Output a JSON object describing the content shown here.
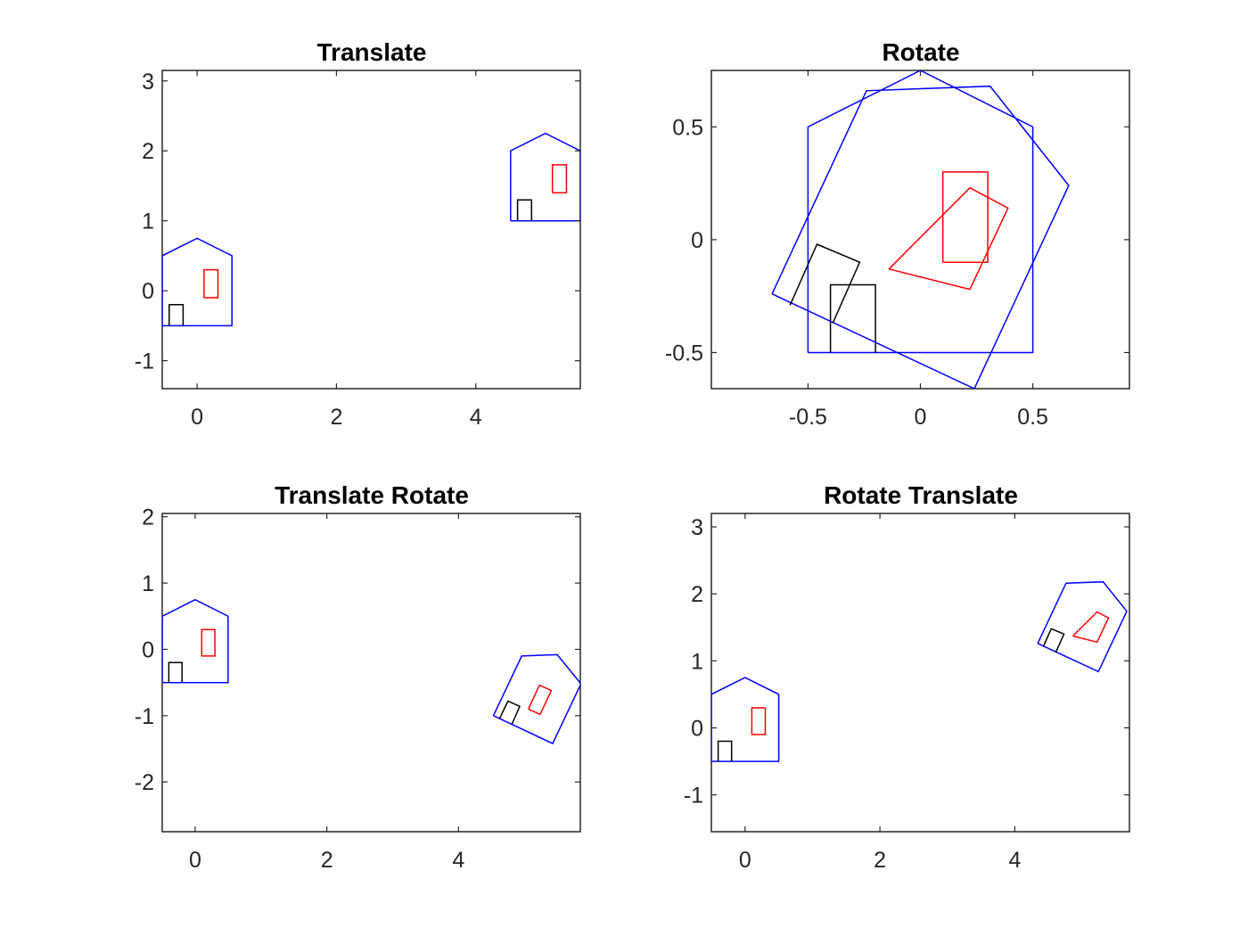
{
  "chart_data": [
    {
      "type": "line",
      "title": "Translate",
      "xlabel": "",
      "ylabel": "",
      "xlim": [
        -0.5,
        5.5
      ],
      "ylim": [
        -1.4,
        3.15
      ],
      "xticks": [
        0,
        2,
        4
      ],
      "xtick_labels": [
        "0",
        "2",
        "4"
      ],
      "yticks": [
        -1,
        0,
        1,
        2,
        3
      ],
      "ytick_labels": [
        "-1",
        "0",
        "1",
        "2",
        "3"
      ],
      "grid": false,
      "shapes": [
        {
          "color": "#0000ff",
          "points": [
            [
              -0.5,
              -0.5
            ],
            [
              0.5,
              -0.5
            ],
            [
              0.5,
              0.5
            ],
            [
              0,
              0.75
            ],
            [
              -0.5,
              0.5
            ],
            [
              -0.5,
              -0.5
            ]
          ]
        },
        {
          "color": "#ff0000",
          "points": [
            [
              0.1,
              -0.1
            ],
            [
              0.3,
              -0.1
            ],
            [
              0.3,
              0.3
            ],
            [
              0.1,
              0.3
            ],
            [
              0.1,
              -0.1
            ]
          ]
        },
        {
          "color": "#000000",
          "points": [
            [
              -0.4,
              -0.5
            ],
            [
              -0.4,
              -0.2
            ],
            [
              -0.2,
              -0.2
            ],
            [
              -0.2,
              -0.5
            ]
          ]
        },
        {
          "color": "#0000ff",
          "points": [
            [
              4.5,
              1.0
            ],
            [
              5.5,
              1.0
            ],
            [
              5.5,
              2.0
            ],
            [
              5.0,
              2.25
            ],
            [
              4.5,
              2.0
            ],
            [
              4.5,
              1.0
            ]
          ]
        },
        {
          "color": "#ff0000",
          "points": [
            [
              5.1,
              1.4
            ],
            [
              5.3,
              1.4
            ],
            [
              5.3,
              1.8
            ],
            [
              5.1,
              1.8
            ],
            [
              5.1,
              1.4
            ]
          ]
        },
        {
          "color": "#000000",
          "points": [
            [
              4.6,
              1.0
            ],
            [
              4.6,
              1.3
            ],
            [
              4.8,
              1.3
            ],
            [
              4.8,
              1.0
            ]
          ]
        }
      ]
    },
    {
      "type": "line",
      "title": "Rotate",
      "xlabel": "",
      "ylabel": "",
      "xlim": [
        -0.93,
        0.93
      ],
      "ylim": [
        -0.66,
        0.75
      ],
      "xticks": [
        -0.5,
        0,
        0.5
      ],
      "xtick_labels": [
        "-0.5",
        "0",
        "0.5"
      ],
      "yticks": [
        -0.5,
        0,
        0.5
      ],
      "ytick_labels": [
        "-0.5",
        "0",
        "0.5"
      ],
      "grid": false,
      "shapes": [
        {
          "color": "#0000ff",
          "points": [
            [
              -0.5,
              -0.5
            ],
            [
              0.5,
              -0.5
            ],
            [
              0.5,
              0.5
            ],
            [
              0,
              0.75
            ],
            [
              -0.5,
              0.5
            ],
            [
              -0.5,
              -0.5
            ]
          ]
        },
        {
          "color": "#ff0000",
          "points": [
            [
              0.1,
              -0.1
            ],
            [
              0.3,
              -0.1
            ],
            [
              0.3,
              0.3
            ],
            [
              0.1,
              0.3
            ],
            [
              0.1,
              -0.1
            ]
          ]
        },
        {
          "color": "#000000",
          "points": [
            [
              -0.4,
              -0.5
            ],
            [
              -0.4,
              -0.2
            ],
            [
              -0.2,
              -0.2
            ],
            [
              -0.2,
              -0.5
            ]
          ]
        },
        {
          "color": "#0000ff",
          "points": [
            [
              -0.66,
              -0.24
            ],
            [
              0.24,
              -0.66
            ],
            [
              0.66,
              0.24
            ],
            [
              0.31,
              0.68
            ],
            [
              -0.24,
              0.66
            ],
            [
              -0.66,
              -0.24
            ]
          ]
        },
        {
          "color": "#ff0000",
          "points": [
            [
              -0.14,
              -0.13
            ],
            [
              0.22,
              -0.22
            ],
            [
              0.39,
              0.14
            ],
            [
              0.22,
              0.23
            ],
            [
              -0.14,
              -0.13
            ]
          ]
        },
        {
          "color": "#000000",
          "points": [
            [
              -0.58,
              -0.29
            ],
            [
              -0.46,
              -0.02
            ],
            [
              -0.27,
              -0.1
            ],
            [
              -0.39,
              -0.37
            ]
          ]
        }
      ]
    },
    {
      "type": "line",
      "title": "Translate Rotate",
      "xlabel": "",
      "ylabel": "",
      "xlim": [
        -0.5,
        5.85
      ],
      "ylim": [
        -2.75,
        2.05
      ],
      "xticks": [
        0,
        2,
        4
      ],
      "xtick_labels": [
        "0",
        "2",
        "4"
      ],
      "yticks": [
        -2,
        -1,
        0,
        1,
        2
      ],
      "ytick_labels": [
        "-2",
        "-1",
        "0",
        "1",
        "2"
      ],
      "grid": false,
      "shapes": [
        {
          "color": "#0000ff",
          "points": [
            [
              -0.5,
              -0.5
            ],
            [
              0.5,
              -0.5
            ],
            [
              0.5,
              0.5
            ],
            [
              0,
              0.75
            ],
            [
              -0.5,
              0.5
            ],
            [
              -0.5,
              -0.5
            ]
          ]
        },
        {
          "color": "#ff0000",
          "points": [
            [
              0.1,
              -0.1
            ],
            [
              0.3,
              -0.1
            ],
            [
              0.3,
              0.3
            ],
            [
              0.1,
              0.3
            ],
            [
              0.1,
              -0.1
            ]
          ]
        },
        {
          "color": "#000000",
          "points": [
            [
              -0.4,
              -0.5
            ],
            [
              -0.4,
              -0.2
            ],
            [
              -0.2,
              -0.2
            ],
            [
              -0.2,
              -0.5
            ]
          ]
        },
        {
          "color": "#0000ff",
          "points": [
            [
              4.53,
              -1.0
            ],
            [
              5.43,
              -1.42
            ],
            [
              5.86,
              -0.52
            ],
            [
              5.5,
              -0.08
            ],
            [
              4.96,
              -0.1
            ],
            [
              4.53,
              -1.0
            ]
          ]
        },
        {
          "color": "#ff0000",
          "points": [
            [
              5.06,
              -0.9
            ],
            [
              5.24,
              -0.98
            ],
            [
              5.41,
              -0.62
            ],
            [
              5.23,
              -0.54
            ],
            [
              5.06,
              -0.9
            ]
          ]
        },
        {
          "color": "#000000",
          "points": [
            [
              4.62,
              -1.05
            ],
            [
              4.75,
              -0.78
            ],
            [
              4.93,
              -0.86
            ],
            [
              4.81,
              -1.13
            ]
          ]
        }
      ]
    },
    {
      "type": "line",
      "title": "Rotate Translate",
      "xlabel": "",
      "ylabel": "",
      "xlim": [
        -0.5,
        5.7
      ],
      "ylim": [
        -1.55,
        3.2
      ],
      "xticks": [
        0,
        2,
        4
      ],
      "xtick_labels": [
        "0",
        "2",
        "4"
      ],
      "yticks": [
        -1,
        0,
        1,
        2,
        3
      ],
      "ytick_labels": [
        "-1",
        "0",
        "1",
        "2",
        "3"
      ],
      "grid": false,
      "shapes": [
        {
          "color": "#0000ff",
          "points": [
            [
              -0.5,
              -0.5
            ],
            [
              0.5,
              -0.5
            ],
            [
              0.5,
              0.5
            ],
            [
              0,
              0.75
            ],
            [
              -0.5,
              0.5
            ],
            [
              -0.5,
              -0.5
            ]
          ]
        },
        {
          "color": "#ff0000",
          "points": [
            [
              0.1,
              -0.1
            ],
            [
              0.3,
              -0.1
            ],
            [
              0.3,
              0.3
            ],
            [
              0.1,
              0.3
            ],
            [
              0.1,
              -0.1
            ]
          ]
        },
        {
          "color": "#000000",
          "points": [
            [
              -0.4,
              -0.5
            ],
            [
              -0.4,
              -0.2
            ],
            [
              -0.2,
              -0.2
            ],
            [
              -0.2,
              -0.5
            ]
          ]
        },
        {
          "color": "#0000ff",
          "points": [
            [
              4.34,
              1.26
            ],
            [
              5.24,
              0.84
            ],
            [
              5.66,
              1.74
            ],
            [
              5.31,
              2.18
            ],
            [
              4.76,
              2.16
            ],
            [
              4.34,
              1.26
            ]
          ]
        },
        {
          "color": "#ff0000",
          "points": [
            [
              4.86,
              1.37
            ],
            [
              5.22,
              1.28
            ],
            [
              5.39,
              1.64
            ],
            [
              5.22,
              1.73
            ],
            [
              4.86,
              1.37
            ]
          ]
        },
        {
          "color": "#000000",
          "points": [
            [
              4.42,
              1.21
            ],
            [
              4.54,
              1.48
            ],
            [
              4.73,
              1.4
            ],
            [
              4.61,
              1.13
            ]
          ]
        }
      ]
    }
  ]
}
